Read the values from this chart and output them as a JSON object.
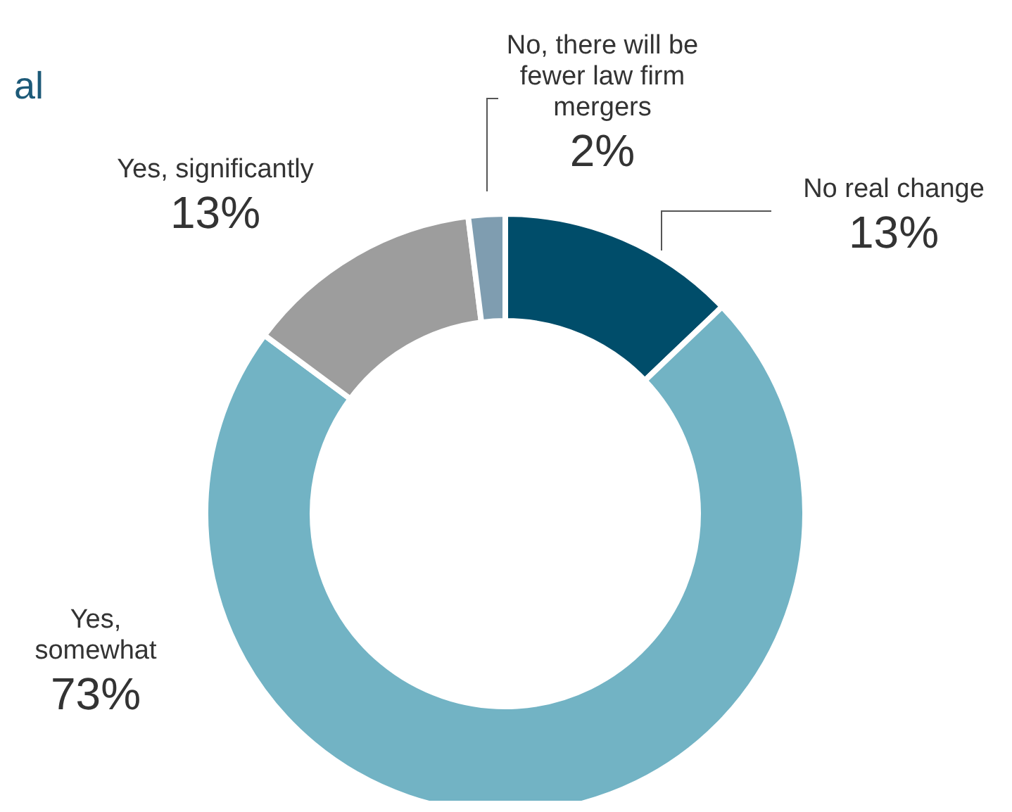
{
  "chart_data": {
    "type": "donut",
    "title": "al",
    "categories": [
      "No real change",
      "Yes, somewhat",
      "Yes, significantly",
      "No, there will be fewer law firm mergers"
    ],
    "values": [
      13,
      73,
      13,
      2
    ],
    "colors": [
      "#004d6a",
      "#72b3c4",
      "#9d9d9d",
      "#7f9db0"
    ],
    "value_labels": [
      "13%",
      "73%",
      "13%",
      "2%"
    ]
  }
}
